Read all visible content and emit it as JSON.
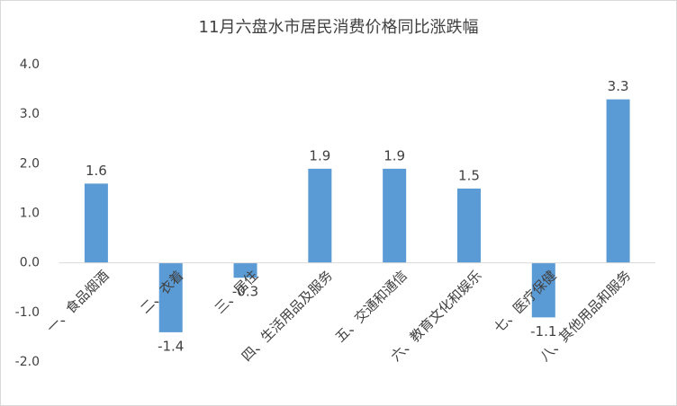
{
  "chart_data": {
    "type": "bar",
    "title": "11月六盘水市居民消费价格同比涨跌幅",
    "categories": [
      "一、食品烟酒",
      "二、衣着",
      "三、居住",
      "四、生活用品及服务",
      "五、交通和通信",
      "六、教育文化和娱乐",
      "七、医疗保健",
      "八、其他用品和服务"
    ],
    "values": [
      1.6,
      -1.4,
      -0.3,
      1.9,
      1.9,
      1.5,
      -1.1,
      3.3
    ],
    "color": "#5b9bd5",
    "ylim": [
      -2,
      4
    ],
    "yticks": [
      {
        "value": -2,
        "label": "-2.0"
      },
      {
        "value": -1,
        "label": "-1.0"
      },
      {
        "value": 0,
        "label": "0.0"
      },
      {
        "value": 1,
        "label": "1.0"
      },
      {
        "value": 2,
        "label": "2.0"
      },
      {
        "value": 3,
        "label": "3.0"
      },
      {
        "value": 4,
        "label": "4.0"
      }
    ],
    "grid": false
  }
}
